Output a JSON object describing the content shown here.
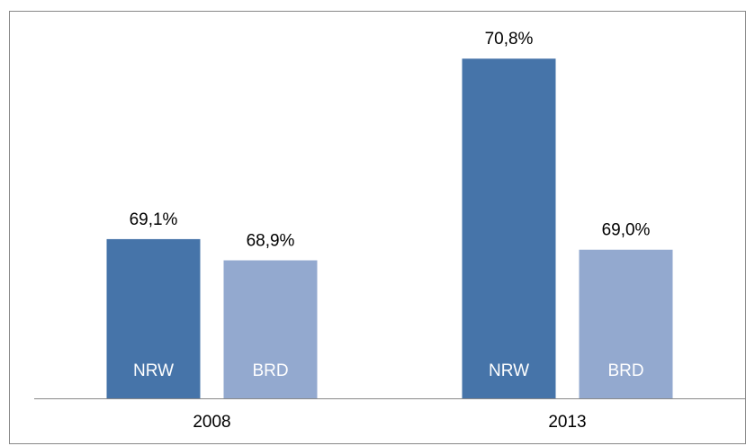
{
  "chart_data": {
    "type": "bar",
    "categories": [
      "2008",
      "2013"
    ],
    "series": [
      {
        "name": "NRW",
        "color": "#4674a9",
        "values": [
          69.1,
          70.8
        ],
        "value_labels": [
          "69,1%",
          "70,8%"
        ]
      },
      {
        "name": "BRD",
        "color": "#93a9cf",
        "values": [
          68.9,
          69.0
        ],
        "value_labels": [
          "68,9%",
          "69,0%"
        ]
      }
    ],
    "ylim": [
      67.6,
      71.2
    ]
  }
}
